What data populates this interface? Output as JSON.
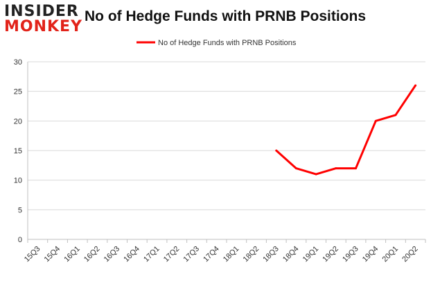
{
  "logo": {
    "line1": "INSIDER",
    "line2": "MONKEY"
  },
  "chart_data": {
    "type": "line",
    "title": "No of Hedge Funds with PRNB Positions",
    "categories": [
      "15Q3",
      "15Q4",
      "16Q1",
      "16Q2",
      "16Q3",
      "16Q4",
      "17Q1",
      "17Q2",
      "17Q3",
      "17Q4",
      "18Q1",
      "18Q2",
      "18Q3",
      "18Q4",
      "19Q1",
      "19Q2",
      "19Q3",
      "19Q4",
      "20Q1",
      "20Q2"
    ],
    "series": [
      {
        "name": "No of Hedge Funds with PRNB Positions",
        "values": [
          null,
          null,
          null,
          null,
          null,
          null,
          null,
          null,
          null,
          null,
          null,
          null,
          15,
          12,
          11,
          12,
          12,
          20,
          21,
          26
        ],
        "color": "#ff0000"
      }
    ],
    "xlabel": "",
    "ylabel": "",
    "ylim": [
      0,
      30
    ],
    "yticks": [
      0,
      5,
      10,
      15,
      20,
      25,
      30
    ],
    "grid": true,
    "legend": "top-center"
  }
}
